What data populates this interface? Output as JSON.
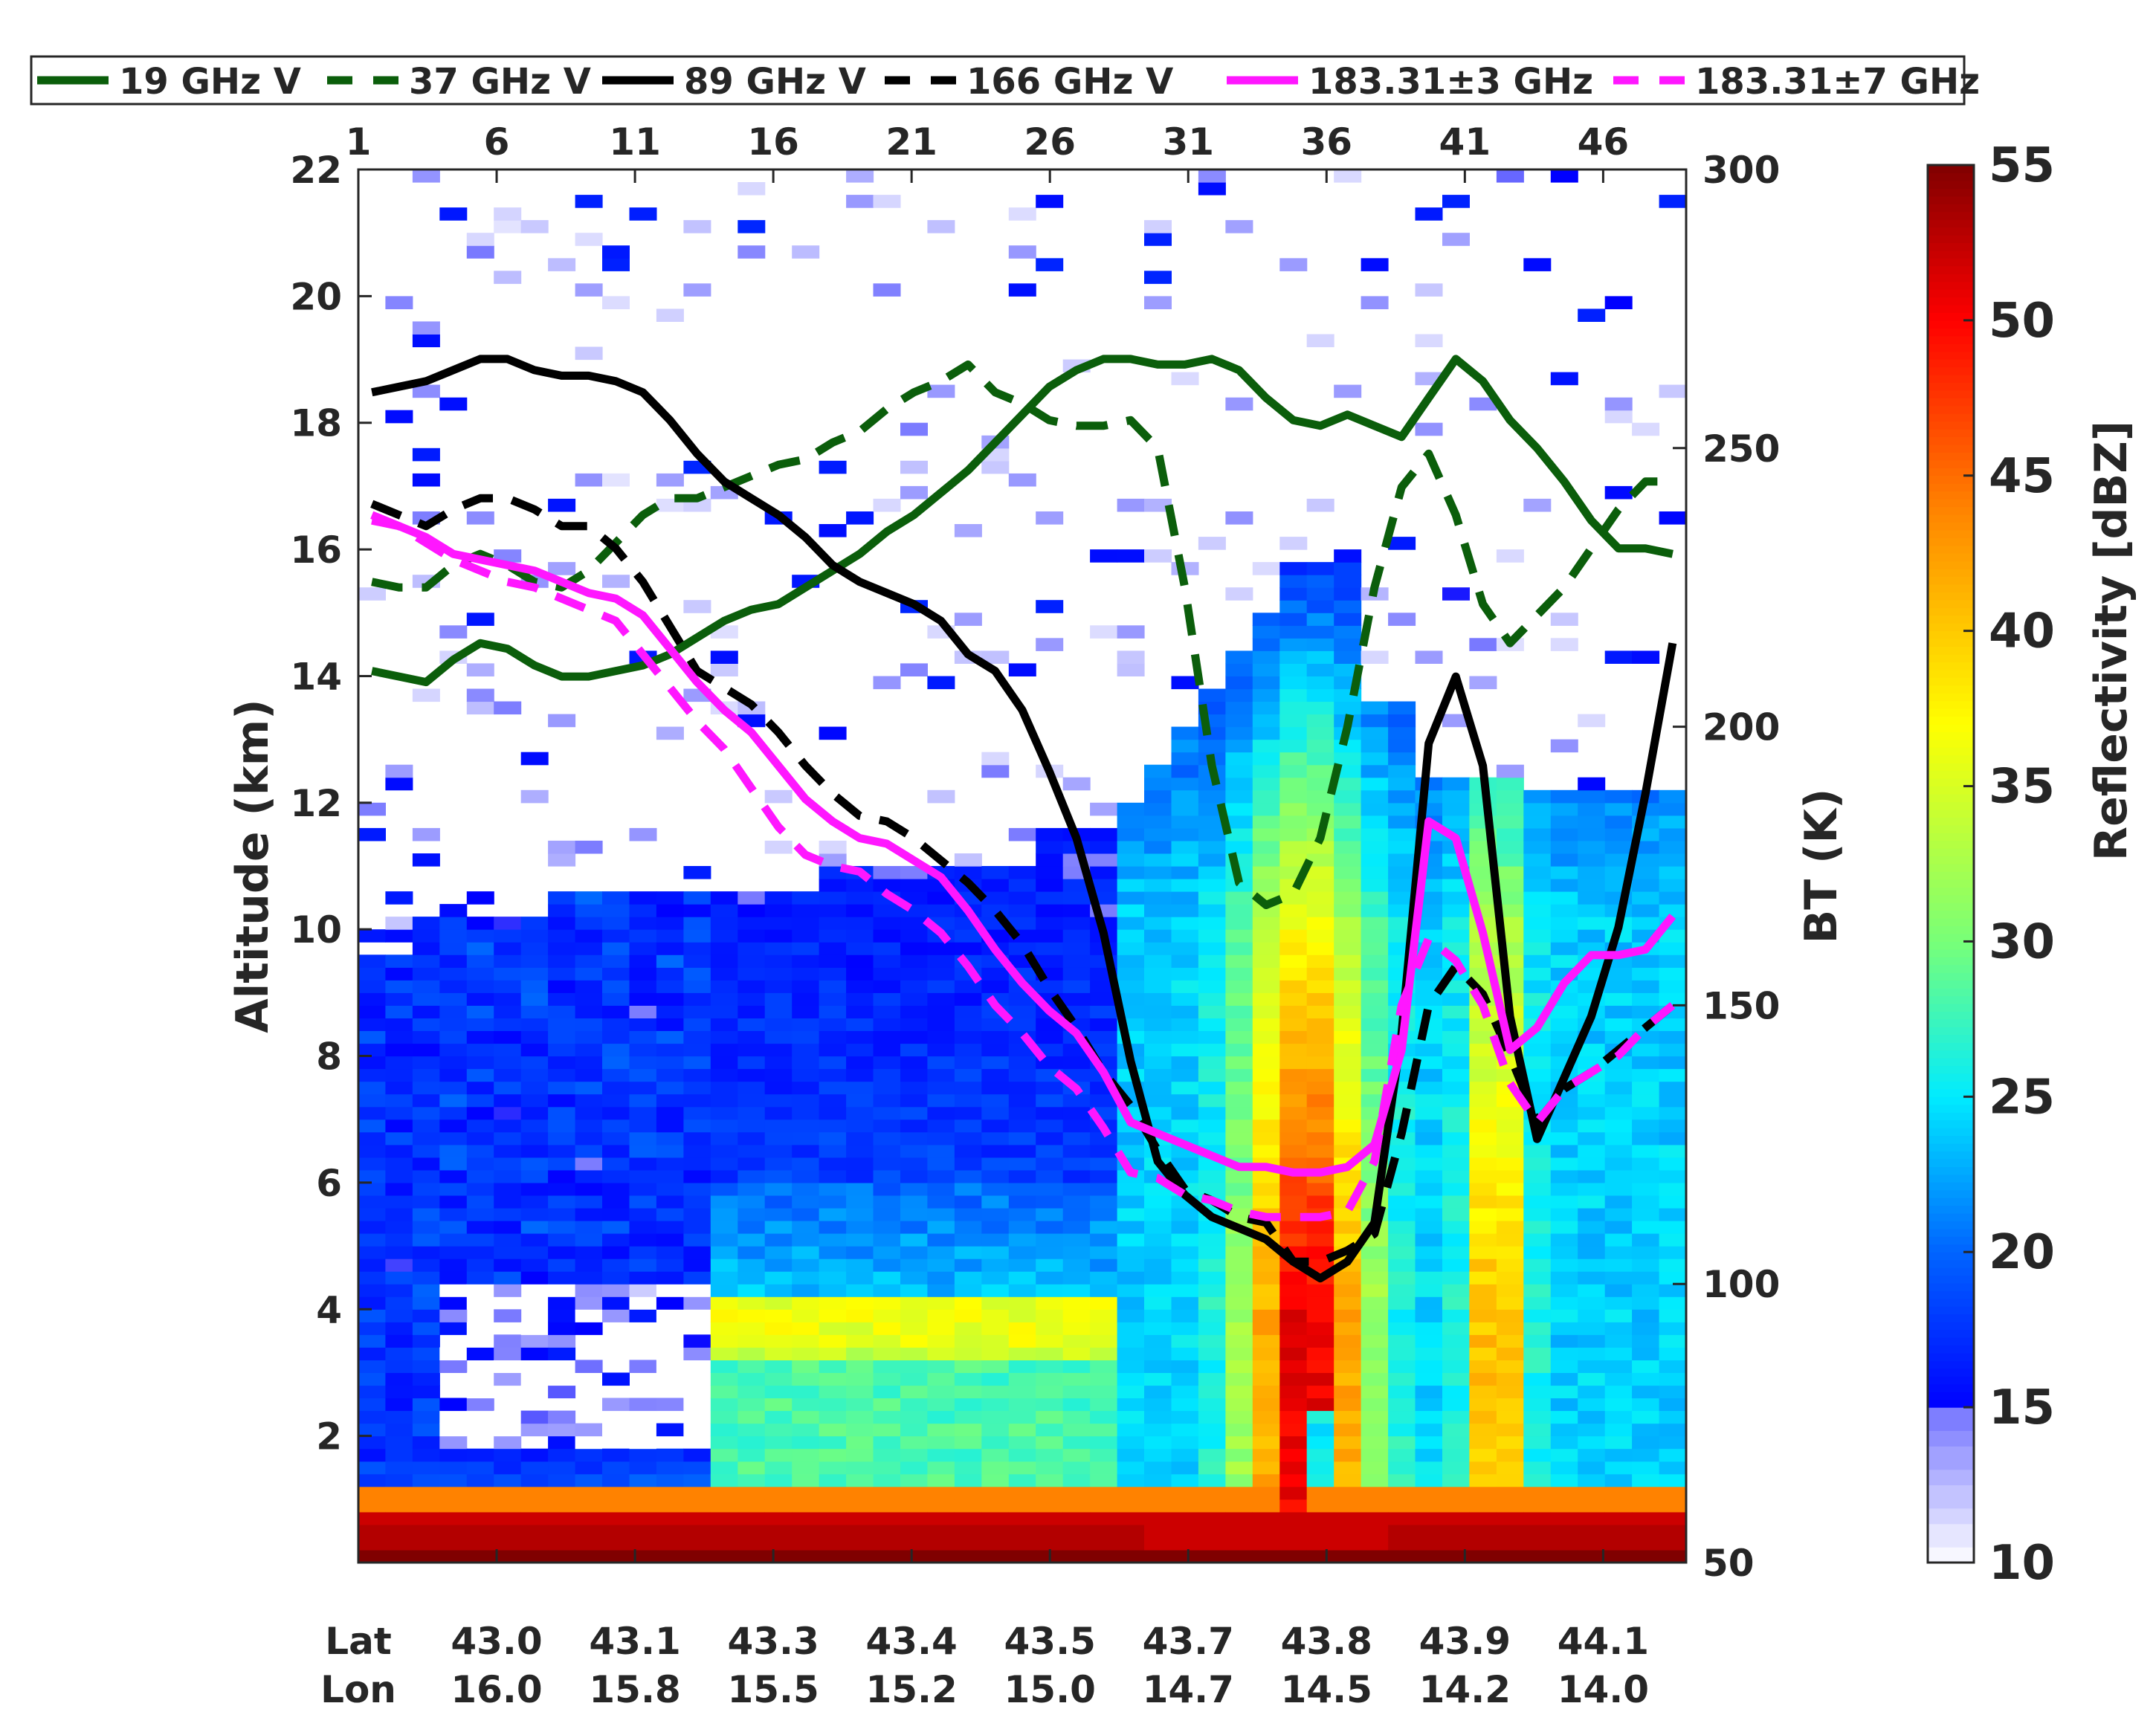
{
  "chart_data": {
    "type": "heatmap",
    "title": "",
    "xlabel_top": "",
    "ylabel": "Altitude (km)",
    "y2label": "BT (K)",
    "colorbar_label": "Reflectivity [dBZ]",
    "x_index_range": [
      1,
      49
    ],
    "x_ticks": [
      1,
      6,
      11,
      16,
      21,
      26,
      31,
      36,
      41,
      46
    ],
    "ylim": [
      0,
      22
    ],
    "y_ticks": [
      2,
      4,
      6,
      8,
      10,
      12,
      14,
      16,
      18,
      20,
      22
    ],
    "y2lim": [
      50,
      300
    ],
    "y2_ticks": [
      50,
      100,
      150,
      200,
      250,
      300
    ],
    "colorbar_range": [
      10,
      55
    ],
    "colorbar_ticks": [
      10,
      15,
      20,
      25,
      30,
      35,
      40,
      45,
      50,
      55
    ],
    "bottom_labels": {
      "row_labels": [
        "Lat",
        "Lon"
      ],
      "lat": [
        "43.0",
        "43.1",
        "43.3",
        "43.4",
        "43.5",
        "43.7",
        "43.8",
        "43.9",
        "44.1"
      ],
      "lon": [
        "16.0",
        "15.8",
        "15.5",
        "15.2",
        "15.0",
        "14.7",
        "14.5",
        "14.2",
        "14.0"
      ]
    },
    "legend_position": "top",
    "series": [
      {
        "name": "19 GHz V",
        "color": "#0b5e0b",
        "dashed": false,
        "values": [
          210,
          209,
          208,
          212,
          215,
          214,
          211,
          209,
          209,
          210,
          211,
          213,
          216,
          219,
          221,
          222,
          225,
          228,
          231,
          235,
          238,
          242,
          246,
          251,
          256,
          261,
          264,
          266,
          266,
          265,
          265,
          266,
          264,
          259,
          255,
          254,
          256,
          254,
          252,
          259,
          266,
          262,
          255,
          250,
          244,
          237,
          232,
          232,
          231
        ]
      },
      {
        "name": "37 GHz V",
        "color": "#0b5e0b",
        "dashed": false,
        "dash": true,
        "values": [
          226,
          225,
          225,
          229,
          231,
          229,
          226,
          225,
          228,
          233,
          238,
          241,
          241,
          243,
          245,
          247,
          248,
          251,
          253,
          257,
          260,
          262,
          265,
          260,
          258,
          255,
          254,
          254,
          255,
          250,
          225,
          193,
          172,
          168,
          170,
          180,
          200,
          225,
          243,
          249,
          238,
          222,
          215,
          220,
          225,
          232,
          239,
          244,
          244
        ]
      },
      {
        "name": "89 GHz V",
        "color": "#000000",
        "dashed": false,
        "values": [
          260,
          261,
          262,
          264,
          266,
          266,
          264,
          263,
          263,
          262,
          260,
          255,
          249,
          244,
          241,
          238,
          234,
          229,
          226,
          224,
          222,
          219,
          213,
          210,
          203,
          192,
          180,
          163,
          140,
          122,
          116,
          112,
          110,
          108,
          104,
          101,
          104,
          111,
          145,
          197,
          209,
          193,
          148,
          126,
          137,
          148,
          164,
          188,
          215
        ]
      },
      {
        "name": "166 GHz V",
        "color": "#000000",
        "dashed": true,
        "values": [
          240,
          238,
          236,
          239,
          241,
          241,
          239,
          236,
          236,
          232,
          226,
          218,
          210,
          207,
          204,
          199,
          193,
          188,
          184,
          183,
          180,
          176,
          172,
          167,
          161,
          153,
          146,
          138,
          132,
          124,
          117,
          115,
          112,
          111,
          104,
          104,
          106,
          109,
          127,
          150,
          157,
          152,
          141,
          129,
          135,
          138,
          142,
          146,
          150
        ]
      },
      {
        "name": "183.31±3 GHz",
        "color": "#ff17ff",
        "dashed": false,
        "values": [
          237,
          236,
          234,
          231,
          230,
          229,
          228,
          226,
          224,
          223,
          220,
          214,
          208,
          203,
          199,
          193,
          187,
          183,
          180,
          179,
          176,
          173,
          167,
          160,
          154,
          149,
          145,
          138,
          129,
          127,
          125,
          123,
          121,
          121,
          120,
          120,
          121,
          125,
          142,
          183,
          180,
          163,
          142,
          146,
          154,
          159,
          159,
          160,
          166
        ]
      },
      {
        "name": "183.31±7 GHz",
        "color": "#ff17ff",
        "dashed": true,
        "values": [
          238,
          236,
          233,
          230,
          228,
          226,
          225,
          223,
          221,
          219,
          213,
          207,
          201,
          196,
          189,
          182,
          177,
          175,
          174,
          170,
          167,
          163,
          157,
          150,
          145,
          139,
          135,
          128,
          120,
          119,
          116,
          115,
          113,
          112,
          112,
          112,
          113,
          122,
          150,
          162,
          158,
          150,
          136,
          129,
          135,
          138,
          141,
          146,
          150
        ]
      }
    ]
  }
}
